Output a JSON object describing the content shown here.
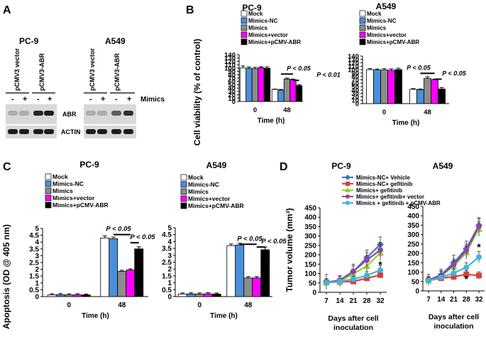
{
  "panels": {
    "A": {
      "letter": "A",
      "blots": [
        {
          "cell_line": "PC-9",
          "lanes": [
            "pCMV3 vector",
            "pCMV3-ABR"
          ],
          "signs": [
            "-",
            "+",
            "-",
            "+"
          ],
          "abr_band": [
            0.15,
            0.15,
            0.9,
            0.95
          ],
          "actin_band": [
            0.95,
            0.95,
            0.95,
            0.95
          ]
        },
        {
          "cell_line": "A549",
          "lanes": [
            "pCMV3 vector",
            "pCMV3-ABR"
          ],
          "signs": [
            "-",
            "+",
            "-",
            "+"
          ],
          "abr_band": [
            0.15,
            0.15,
            0.6,
            0.85
          ],
          "actin_band": [
            0.95,
            0.95,
            0.95,
            0.95
          ]
        }
      ],
      "treatment_label": "Mimics",
      "row_labels": [
        "ABR",
        "ACTIN"
      ]
    },
    "B": {
      "letter": "B"
    },
    "C": {
      "letter": "C"
    },
    "D": {
      "letter": "D"
    }
  },
  "colors": {
    "mock": "#ffffff",
    "mimics_nc": "#4a90d9",
    "mimics": "#8c8c8c",
    "mimics_vector": "#ff00ff",
    "mimics_pcmv_abr": "#000000",
    "line_vehicle": "#4472c4",
    "line_gefitinib": "#d9423b",
    "line_mimics_gef": "#9acd32",
    "line_vector": "#8e44ad",
    "line_pcmv": "#3fb6d9",
    "sig_line": "#000000"
  },
  "chart_data": [
    {
      "panel": "B",
      "type": "bar",
      "title": "PC-9",
      "ylabel": "Cell viability (% of control)",
      "xlabel": "Time (h)",
      "ylim": [
        0,
        140
      ],
      "yticks": [
        0,
        10,
        20,
        30,
        40,
        50,
        60,
        70,
        80,
        90,
        100,
        110,
        120,
        130,
        140
      ],
      "categories": [
        "0",
        "48"
      ],
      "legend": [
        "Mock",
        "Mimics-NC",
        "Mimics",
        "Mimics+vector",
        "Mimics+pCMV-ABR"
      ],
      "series": [
        {
          "name": "Mock",
          "values": [
            100,
            36
          ],
          "errors": [
            6,
            1
          ]
        },
        {
          "name": "Mimics-NC",
          "values": [
            99,
            34
          ],
          "errors": [
            4,
            2
          ]
        },
        {
          "name": "Mimics",
          "values": [
            98,
            67
          ],
          "errors": [
            4,
            3
          ]
        },
        {
          "name": "Mimics+vector",
          "values": [
            101,
            65
          ],
          "errors": [
            3,
            2
          ]
        },
        {
          "name": "Mimics+pCMV-ABR",
          "values": [
            99,
            47
          ],
          "errors": [
            4,
            3
          ]
        }
      ],
      "annotations": [
        "P < 0.05",
        "P < 0.01"
      ]
    },
    {
      "panel": "B",
      "type": "bar",
      "title": "A549",
      "ylabel": "",
      "xlabel": "Time (h)",
      "ylim": [
        0,
        140
      ],
      "yticks": [
        0,
        10,
        20,
        30,
        40,
        50,
        60,
        70,
        80,
        90,
        100,
        110,
        120,
        130,
        140
      ],
      "categories": [
        "0",
        "48"
      ],
      "legend": [
        "Mock",
        "Mimics-NC",
        "Mimics",
        "Mimics+vector",
        "Mimics+pCMV-ABR"
      ],
      "series": [
        {
          "name": "Mock",
          "values": [
            100,
            42
          ],
          "errors": [
            3,
            2
          ]
        },
        {
          "name": "Mimics-NC",
          "values": [
            99,
            41
          ],
          "errors": [
            3,
            2
          ]
        },
        {
          "name": "Mimics",
          "values": [
            99,
            74
          ],
          "errors": [
            4,
            5
          ]
        },
        {
          "name": "Mimics+vector",
          "values": [
            98,
            70
          ],
          "errors": [
            4,
            2
          ]
        },
        {
          "name": "Mimics+pCMV-ABR",
          "values": [
            100,
            43
          ],
          "errors": [
            4,
            4
          ]
        }
      ],
      "annotations": [
        "P < 0.05",
        "P < 0.05"
      ]
    },
    {
      "panel": "C",
      "type": "bar",
      "title": "PC-9",
      "ylabel": "Apoptosis (OD @ 405 nm)",
      "xlabel": "Time (h)",
      "ylim": [
        0,
        5
      ],
      "yticks": [
        0,
        0.5,
        1,
        1.5,
        2,
        2.5,
        3,
        3.5,
        4,
        4.5,
        5
      ],
      "categories": [
        "0",
        "48"
      ],
      "legend": [
        "Mock",
        "Mimics-NC",
        "Mimics",
        "Mimics+vector",
        "Mimics+pCMV-ABR"
      ],
      "series": [
        {
          "name": "Mock",
          "values": [
            0.12,
            4.3
          ],
          "errors": [
            0.08,
            0.15
          ]
        },
        {
          "name": "Mimics-NC",
          "values": [
            0.14,
            4.25
          ],
          "errors": [
            0.08,
            0.12
          ]
        },
        {
          "name": "Mimics",
          "values": [
            0.12,
            1.85
          ],
          "errors": [
            0.08,
            0.08
          ]
        },
        {
          "name": "Mimics+vector",
          "values": [
            0.13,
            1.95
          ],
          "errors": [
            0.08,
            0.08
          ]
        },
        {
          "name": "Mimics+pCMV-ABR",
          "values": [
            0.12,
            3.5
          ],
          "errors": [
            0.06,
            0.15
          ]
        }
      ],
      "annotations": [
        "P < 0.05",
        "P < 0.05"
      ]
    },
    {
      "panel": "C",
      "type": "bar",
      "title": "A549",
      "ylabel": "",
      "xlabel": "Time (h)",
      "ylim": [
        0,
        5
      ],
      "yticks": [
        0,
        0.5,
        1,
        1.5,
        2,
        2.5,
        3,
        3.5,
        4,
        4.5,
        5
      ],
      "categories": [
        "0",
        "48"
      ],
      "legend": [
        "Mock",
        "Mimics-NC",
        "Mimics",
        "Mimics+vector",
        "Mimics+pCMV-ABR"
      ],
      "series": [
        {
          "name": "Mock",
          "values": [
            0.18,
            3.7
          ],
          "errors": [
            0.08,
            0.12
          ]
        },
        {
          "name": "Mimics-NC",
          "values": [
            0.19,
            3.75
          ],
          "errors": [
            0.08,
            0.12
          ]
        },
        {
          "name": "Mimics",
          "values": [
            0.18,
            1.35
          ],
          "errors": [
            0.08,
            0.1
          ]
        },
        {
          "name": "Mimics+vector",
          "values": [
            0.2,
            1.35
          ],
          "errors": [
            0.08,
            0.1
          ]
        },
        {
          "name": "Mimics+pCMV-ABR",
          "values": [
            0.18,
            3.4
          ],
          "errors": [
            0.08,
            0.2
          ]
        }
      ],
      "annotations": [
        "P < 0.05",
        "P < 0.05"
      ]
    },
    {
      "panel": "D",
      "type": "line",
      "title": "PC-9",
      "ylabel": "Tumor volume (mm³)",
      "xlabel": "Days after cell inoculation",
      "ylim": [
        0,
        450
      ],
      "yticks": [
        0,
        50,
        100,
        150,
        200,
        250,
        300,
        350,
        400,
        450
      ],
      "x": [
        7,
        14,
        21,
        28,
        32
      ],
      "xticks": [
        "7",
        "14",
        "21",
        "28",
        "32"
      ],
      "series": [
        {
          "name": "Mimics-NC+ Vehicle",
          "marker": "diamond",
          "values": [
            55,
            60,
            110,
            185,
            255
          ],
          "errors": [
            40,
            30,
            40,
            40,
            40
          ]
        },
        {
          "name": "Mimics-NC+ gefitinib",
          "marker": "square",
          "values": [
            52,
            55,
            58,
            75,
            92
          ],
          "errors": [
            15,
            10,
            12,
            15,
            15
          ]
        },
        {
          "name": "Mimics+ gefitinib",
          "marker": "triangle",
          "values": [
            52,
            57,
            98,
            140,
            210
          ],
          "errors": [
            15,
            15,
            25,
            30,
            40
          ]
        },
        {
          "name": "Mimics+ gefitinib+ vector",
          "marker": "circle",
          "values": [
            53,
            65,
            112,
            172,
            225
          ],
          "errors": [
            20,
            20,
            30,
            40,
            40
          ]
        },
        {
          "name": "Mimics + gefitinib + pCMV-ABR",
          "marker": "circle",
          "values": [
            52,
            58,
            70,
            90,
            118
          ],
          "errors": [
            15,
            12,
            15,
            20,
            25
          ]
        }
      ],
      "annotations": [
        "*"
      ]
    },
    {
      "panel": "D",
      "type": "line",
      "title": "A549",
      "ylabel": "",
      "xlabel": "Days after cell inoculation",
      "ylim": [
        0,
        450
      ],
      "yticks": [
        0,
        50,
        100,
        150,
        200,
        250,
        300,
        350,
        400,
        450
      ],
      "x": [
        7,
        14,
        21,
        28,
        32
      ],
      "xticks": [
        "7",
        "14",
        "21",
        "28",
        "32"
      ],
      "series": [
        {
          "name": "Mimics-NC+ Vehicle",
          "marker": "diamond",
          "values": [
            58,
            85,
            150,
            225,
            350
          ],
          "errors": [
            30,
            30,
            40,
            40,
            40
          ]
        },
        {
          "name": "Mimics-NC+ gefitinib",
          "marker": "square",
          "values": [
            55,
            68,
            75,
            88,
            82
          ],
          "errors": [
            15,
            15,
            15,
            20,
            20
          ]
        },
        {
          "name": "Mimics+ gefitinib",
          "marker": "triangle",
          "values": [
            55,
            80,
            130,
            205,
            330
          ],
          "errors": [
            20,
            25,
            30,
            35,
            40
          ]
        },
        {
          "name": "Mimics+ gefitinib+ vector",
          "marker": "circle",
          "values": [
            57,
            82,
            140,
            215,
            345
          ],
          "errors": [
            20,
            25,
            30,
            35,
            40
          ]
        },
        {
          "name": "Mimics + gefitinib + pCMV-ABR",
          "marker": "circle",
          "values": [
            55,
            72,
            95,
            125,
            180
          ],
          "errors": [
            15,
            15,
            20,
            25,
            30
          ]
        }
      ],
      "annotations": [
        "*",
        "*"
      ]
    }
  ]
}
